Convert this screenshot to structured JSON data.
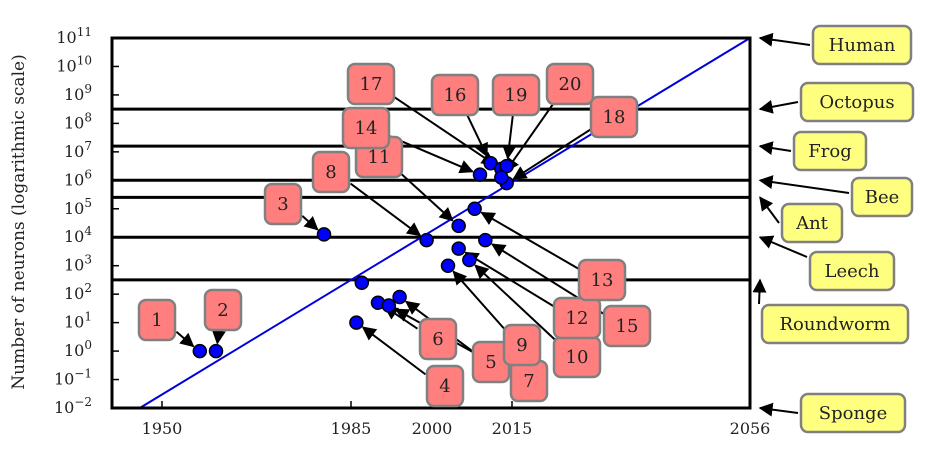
{
  "chart_data": {
    "type": "scatter",
    "title": "",
    "xlabel": "",
    "ylabel": "Number of neurons (logarithmic scale)",
    "log_y": true,
    "xlim": [
      1941,
      2056
    ],
    "ylim_exp": [
      -2,
      11
    ],
    "x_ticks": [
      "1950",
      "1985",
      "2000",
      "2015",
      "2056"
    ],
    "x_tick_values": [
      1950,
      1985,
      2000,
      2015,
      2056
    ],
    "y_tick_exponents": [
      -2,
      -1,
      0,
      1,
      2,
      3,
      4,
      5,
      6,
      7,
      8,
      9,
      10,
      11
    ],
    "y_tick_base": "10",
    "grid": false,
    "trend_line": {
      "from": [
        1946,
        -2
      ],
      "to": [
        2056,
        11
      ],
      "color": "#0000dd"
    },
    "reference_levels": [
      {
        "name": "Human",
        "log10": 11
      },
      {
        "name": "Octopus",
        "log10": 8.5
      },
      {
        "name": "Frog",
        "log10": 7.2
      },
      {
        "name": "Bee",
        "log10": 6.0
      },
      {
        "name": "Ant",
        "log10": 5.4
      },
      {
        "name": "Leech",
        "log10": 4.0
      },
      {
        "name": "Roundworm",
        "log10": 2.5
      },
      {
        "name": "Sponge",
        "log10": -2
      }
    ],
    "points": [
      {
        "id": "1",
        "year": 1957,
        "log10": 0.0
      },
      {
        "id": "2",
        "year": 1960,
        "log10": 0.0
      },
      {
        "id": "3",
        "year": 1980,
        "log10": 4.1
      },
      {
        "id": "4",
        "year": 1986,
        "log10": 1.0
      },
      {
        "id": "5",
        "year": 1994,
        "log10": 1.9
      },
      {
        "id": "6",
        "year": 1990,
        "log10": 1.7
      },
      {
        "id": "7",
        "year": 1992,
        "log10": 1.6
      },
      {
        "id": "8",
        "year": 1999,
        "log10": 3.9
      },
      {
        "id": "9",
        "year": 2003,
        "log10": 3.0
      },
      {
        "id": "10",
        "year": 2007,
        "log10": 3.2
      },
      {
        "id": "11",
        "year": 2005,
        "log10": 4.4
      },
      {
        "id": "12",
        "year": 2005,
        "log10": 3.6
      },
      {
        "id": "13",
        "year": 2008,
        "log10": 5.0
      },
      {
        "id": "14",
        "year": 2009,
        "log10": 6.2
      },
      {
        "id": "15",
        "year": 2010,
        "log10": 3.9
      },
      {
        "id": "16",
        "year": 2011,
        "log10": 6.6
      },
      {
        "id": "17",
        "year": 2013,
        "log10": 6.4
      },
      {
        "id": "18",
        "year": 2014,
        "log10": 5.9
      },
      {
        "id": "19",
        "year": 2014,
        "log10": 6.5
      },
      {
        "id": "20",
        "year": 2013,
        "log10": 6.1
      },
      {
        "id": "",
        "year": 1987,
        "log10": 2.4
      }
    ],
    "colors": {
      "point": "#0000ff",
      "box_red": "#ff7f7f",
      "box_yellow": "#ffff7f",
      "box_border": "#808080"
    }
  }
}
